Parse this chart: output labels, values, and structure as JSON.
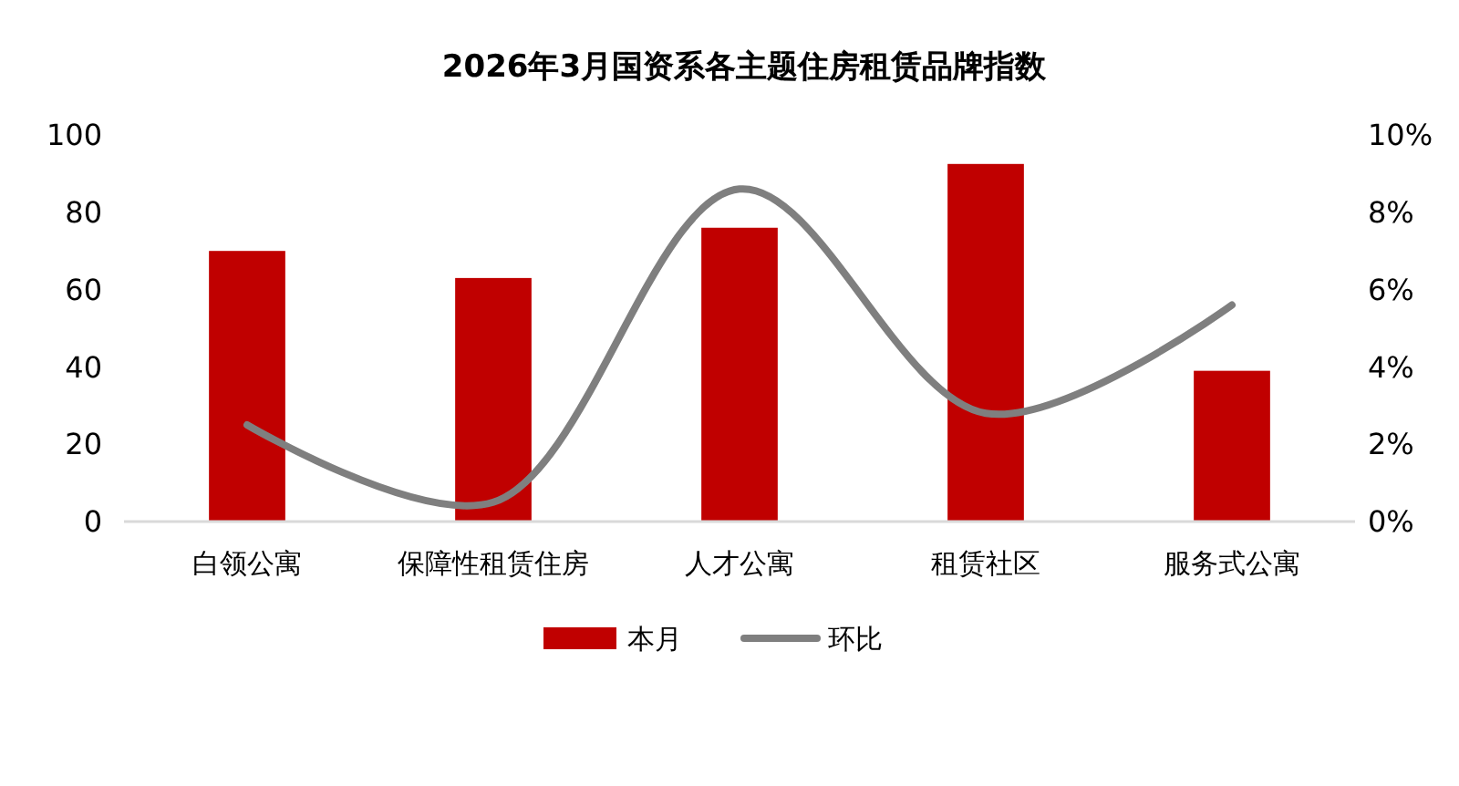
{
  "chart_data": {
    "type": "bar",
    "title": "2026年3月国资系各主题住房租赁品牌指数",
    "categories": [
      "白领公寓",
      "保障性租赁住房",
      "人才公寓",
      "租赁社区",
      "服务式公寓"
    ],
    "series": [
      {
        "name": "本月",
        "color": "#c00000",
        "values": [
          70,
          63,
          76,
          92.5,
          39
        ]
      },
      {
        "name": "环比",
        "type": "line",
        "axis": "y2",
        "color": "#7f7f7f",
        "values": [
          2.5,
          0.5,
          8.6,
          2.8,
          5.6
        ]
      }
    ],
    "ylim": [
      0,
      100
    ],
    "yticks": [
      0,
      20,
      40,
      60,
      80,
      100
    ],
    "y2lim": [
      0,
      10
    ],
    "y2ticks": [
      {
        "value": 0,
        "label": "0%"
      },
      {
        "value": 2,
        "label": "2%"
      },
      {
        "value": 4,
        "label": "4%"
      },
      {
        "value": 6,
        "label": "6%"
      },
      {
        "value": 8,
        "label": "8%"
      },
      {
        "value": 10,
        "label": "10%"
      }
    ],
    "grid": false,
    "legend": "bottom"
  }
}
